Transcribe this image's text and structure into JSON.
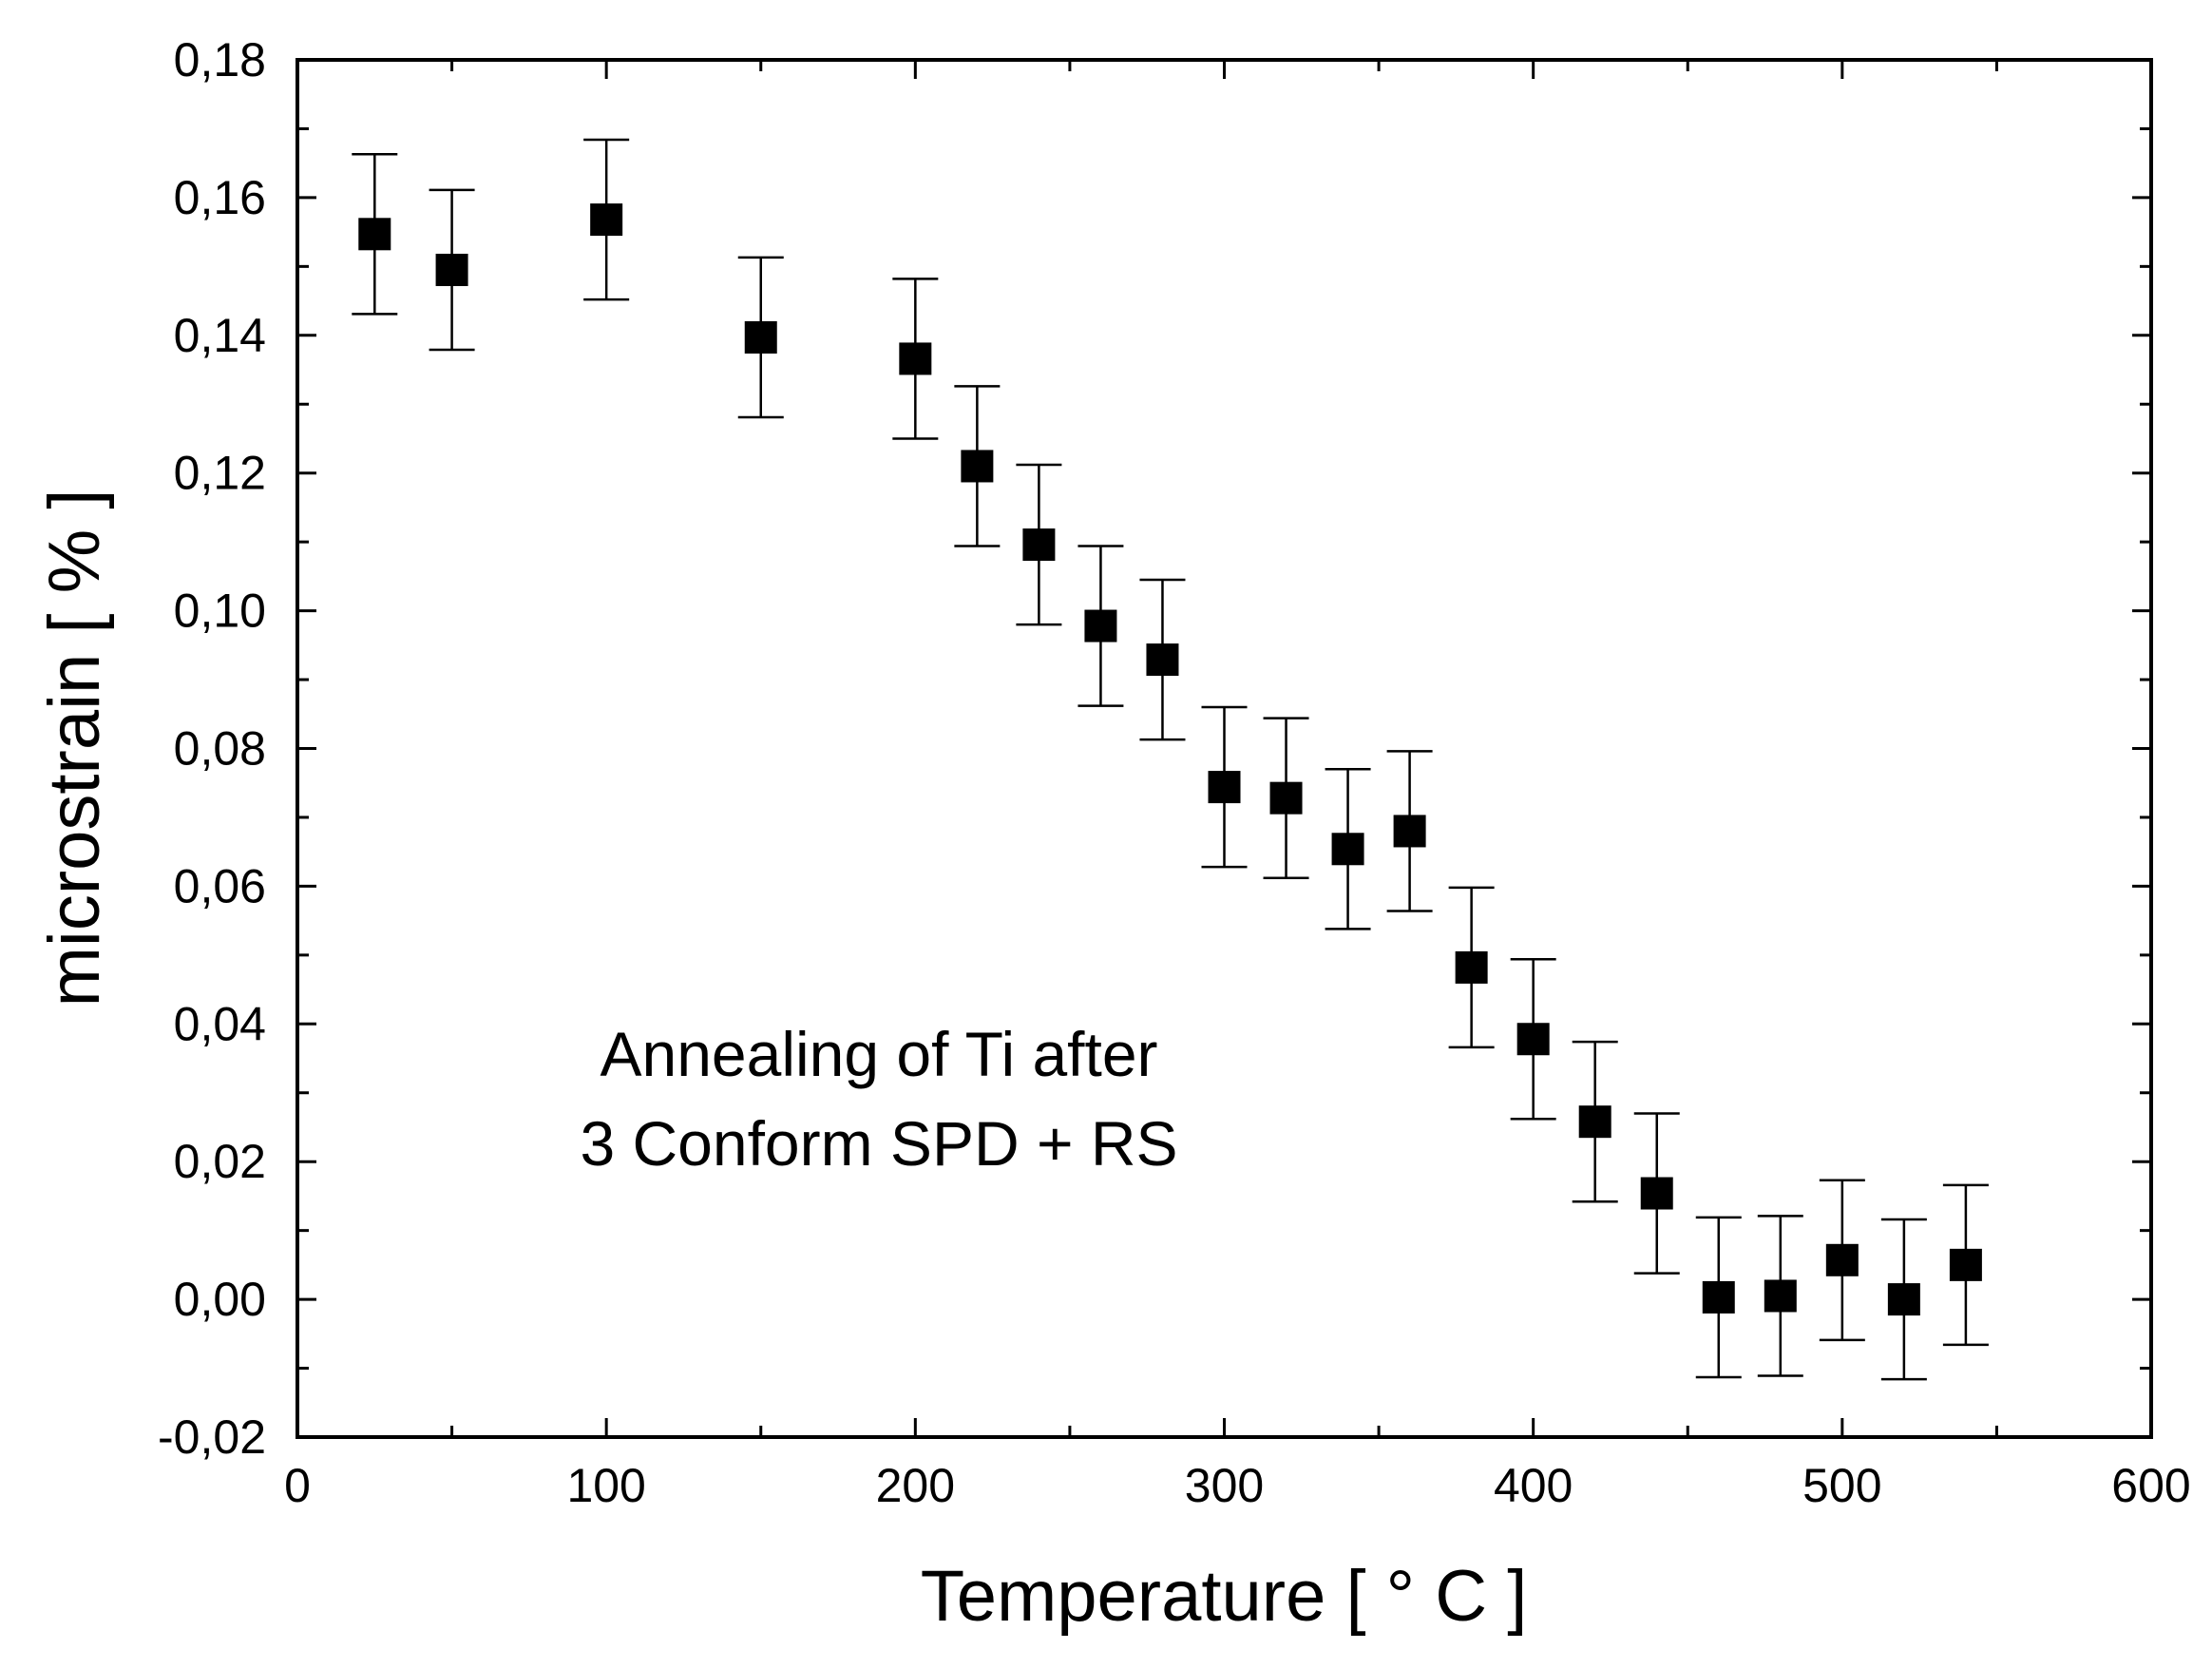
{
  "chart_data": {
    "type": "scatter",
    "title": "",
    "xlabel": "Temperature [ ° C ]",
    "ylabel": "microstrain [ % ]",
    "xlim": [
      0,
      600
    ],
    "ylim": [
      -0.02,
      0.18
    ],
    "xticks": [
      0,
      100,
      200,
      300,
      400,
      500,
      600
    ],
    "xtick_labels": [
      "0",
      "100",
      "200",
      "300",
      "400",
      "500",
      "600"
    ],
    "yticks": [
      -0.02,
      0,
      0.02,
      0.04,
      0.06,
      0.08,
      0.1,
      0.12,
      0.14,
      0.16,
      0.18
    ],
    "ytick_labels": [
      "-0,02",
      "0,00",
      "0,02",
      "0,04",
      "0,06",
      "0,08",
      "0,10",
      "0,12",
      "0,14",
      "0,16",
      "0,18"
    ],
    "grid": false,
    "legend": "none",
    "annotation": [
      "Annealing of Ti after",
      "3 Conform SPD + RS"
    ],
    "series": [
      {
        "name": "microstrain",
        "marker": "square",
        "color": "#000000",
        "x": [
          25,
          50,
          100,
          150,
          200,
          220,
          240,
          260,
          280,
          300,
          320,
          340,
          360,
          380,
          400,
          420,
          440,
          460,
          480,
          500,
          520,
          540
        ],
        "y": [
          0.1547,
          0.1495,
          0.1568,
          0.1397,
          0.1366,
          0.121,
          0.1096,
          0.0978,
          0.0929,
          0.0744,
          0.0728,
          0.0654,
          0.068,
          0.0482,
          0.0378,
          0.0258,
          0.0154,
          0.0003,
          0.0005,
          0.0057,
          0.0,
          0.005
        ],
        "error": [
          0.0116,
          0.0116,
          0.0116,
          0.0116,
          0.0116,
          0.0116,
          0.0116,
          0.0116,
          0.0116,
          0.0116,
          0.0116,
          0.0116,
          0.0116,
          0.0116,
          0.0116,
          0.0116,
          0.0116,
          0.0116,
          0.0116,
          0.0116,
          0.0116,
          0.0116
        ]
      }
    ]
  }
}
